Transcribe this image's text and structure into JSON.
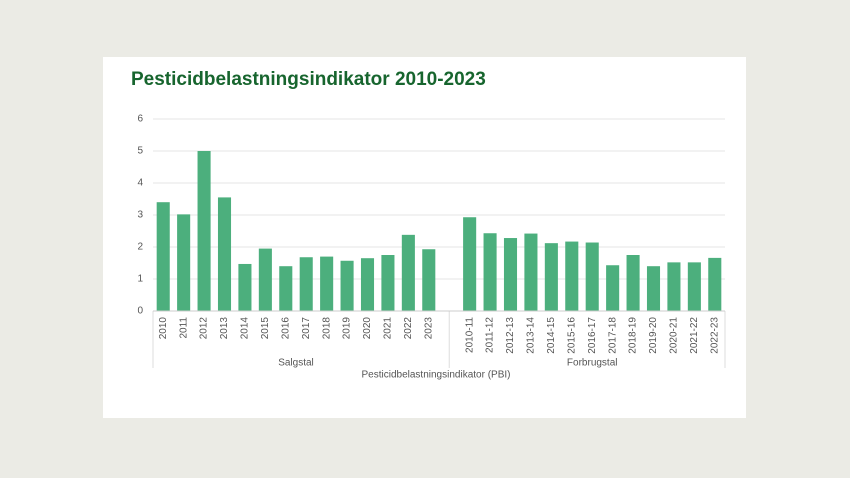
{
  "chart_data": {
    "type": "bar",
    "title": "Pesticidbelastningsindikator 2010-2023",
    "xlabel": "Pesticidbelastningsindikator (PBI)",
    "color": "#4caf7d",
    "groups": [
      {
        "name": "Salgstal",
        "categories": [
          "2010",
          "2011",
          "2012",
          "2013",
          "2014",
          "2015",
          "2016",
          "2017",
          "2018",
          "2019",
          "2020",
          "2021",
          "2022",
          "2023"
        ],
        "values": [
          3.4,
          3.02,
          5.0,
          3.55,
          1.47,
          1.95,
          1.4,
          1.68,
          1.7,
          1.57,
          1.65,
          1.75,
          2.38,
          1.93
        ]
      },
      {
        "name": "Forbrugstal",
        "categories": [
          "2010-11",
          "2011-12",
          "2012-13",
          "2013-14",
          "2014-15",
          "2015-16",
          "2016-17",
          "2017-18",
          "2018-19",
          "2019-20",
          "2020-21",
          "2021-22",
          "2022-23"
        ],
        "values": [
          2.93,
          2.43,
          2.28,
          2.42,
          2.12,
          2.17,
          2.14,
          1.43,
          1.75,
          1.4,
          1.52,
          1.52,
          1.66
        ]
      }
    ],
    "ylim": [
      0,
      6
    ],
    "yticks": [
      0,
      1,
      2,
      3,
      4,
      5,
      6
    ],
    "grid": true
  }
}
